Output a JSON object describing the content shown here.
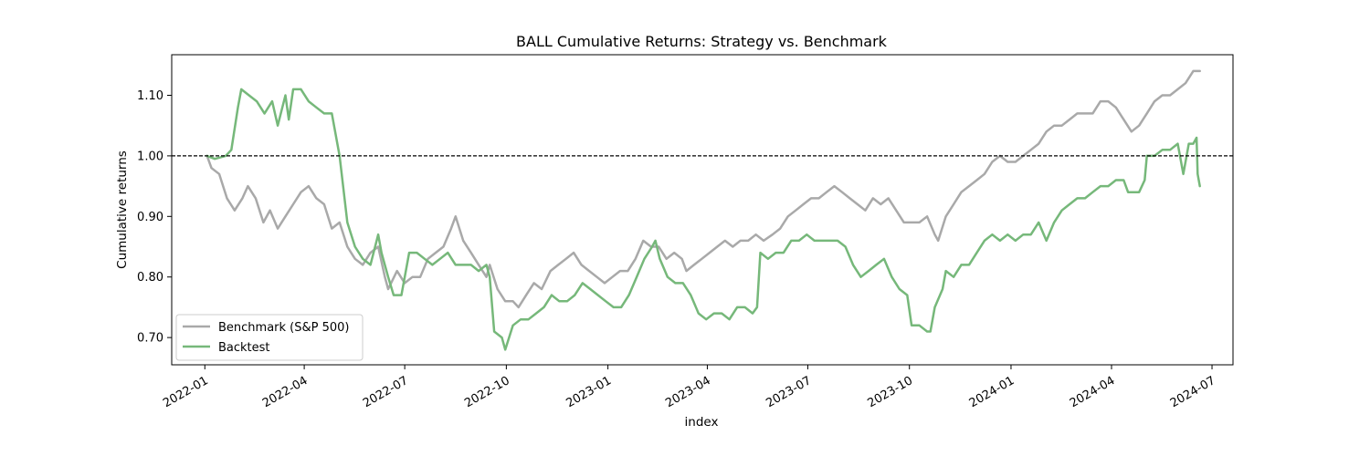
{
  "chart_data": {
    "type": "line",
    "title": "BALL Cumulative Returns: Strategy vs. Benchmark",
    "xlabel": "index",
    "ylabel": "Cumulative returns",
    "xlim": [
      "2021-12-02",
      "2024-07-20"
    ],
    "ylim": [
      0.655,
      1.167
    ],
    "x_ticks": [
      "2022-01",
      "2022-04",
      "2022-07",
      "2022-10",
      "2023-01",
      "2023-04",
      "2023-07",
      "2023-10",
      "2024-01",
      "2024-04",
      "2024-07"
    ],
    "y_ticks": [
      0.7,
      0.8,
      0.9,
      1.0,
      1.1
    ],
    "y_tick_labels": [
      "0.70",
      "0.80",
      "0.90",
      "1.00",
      "1.10"
    ],
    "reference_line": {
      "y": 1.0,
      "style": "dashed",
      "color": "#000000"
    },
    "legend_position": "lower-left",
    "grid": false,
    "series": [
      {
        "name": "Benchmark (S&P 500)",
        "color": "#a9a9a9",
        "points": [
          [
            "2022-01-03",
            1.0
          ],
          [
            "2022-01-07",
            0.98
          ],
          [
            "2022-01-14",
            0.97
          ],
          [
            "2022-01-21",
            0.93
          ],
          [
            "2022-01-28",
            0.91
          ],
          [
            "2022-02-04",
            0.93
          ],
          [
            "2022-02-09",
            0.95
          ],
          [
            "2022-02-16",
            0.93
          ],
          [
            "2022-02-23",
            0.89
          ],
          [
            "2022-03-01",
            0.91
          ],
          [
            "2022-03-08",
            0.88
          ],
          [
            "2022-03-15",
            0.9
          ],
          [
            "2022-03-22",
            0.92
          ],
          [
            "2022-03-29",
            0.94
          ],
          [
            "2022-04-05",
            0.95
          ],
          [
            "2022-04-12",
            0.93
          ],
          [
            "2022-04-19",
            0.92
          ],
          [
            "2022-04-26",
            0.88
          ],
          [
            "2022-05-03",
            0.89
          ],
          [
            "2022-05-10",
            0.85
          ],
          [
            "2022-05-17",
            0.83
          ],
          [
            "2022-05-24",
            0.82
          ],
          [
            "2022-05-31",
            0.84
          ],
          [
            "2022-06-07",
            0.85
          ],
          [
            "2022-06-13",
            0.8
          ],
          [
            "2022-06-16",
            0.78
          ],
          [
            "2022-06-24",
            0.81
          ],
          [
            "2022-07-01",
            0.79
          ],
          [
            "2022-07-08",
            0.8
          ],
          [
            "2022-07-15",
            0.8
          ],
          [
            "2022-07-22",
            0.83
          ],
          [
            "2022-07-29",
            0.84
          ],
          [
            "2022-08-05",
            0.85
          ],
          [
            "2022-08-12",
            0.88
          ],
          [
            "2022-08-16",
            0.9
          ],
          [
            "2022-08-23",
            0.86
          ],
          [
            "2022-08-30",
            0.84
          ],
          [
            "2022-09-06",
            0.82
          ],
          [
            "2022-09-13",
            0.8
          ],
          [
            "2022-09-16",
            0.82
          ],
          [
            "2022-09-23",
            0.78
          ],
          [
            "2022-09-30",
            0.76
          ],
          [
            "2022-10-07",
            0.76
          ],
          [
            "2022-10-12",
            0.75
          ],
          [
            "2022-10-19",
            0.77
          ],
          [
            "2022-10-26",
            0.79
          ],
          [
            "2022-11-02",
            0.78
          ],
          [
            "2022-11-10",
            0.81
          ],
          [
            "2022-11-17",
            0.82
          ],
          [
            "2022-11-24",
            0.83
          ],
          [
            "2022-12-01",
            0.84
          ],
          [
            "2022-12-08",
            0.82
          ],
          [
            "2022-12-15",
            0.81
          ],
          [
            "2022-12-22",
            0.8
          ],
          [
            "2022-12-29",
            0.79
          ],
          [
            "2023-01-05",
            0.8
          ],
          [
            "2023-01-12",
            0.81
          ],
          [
            "2023-01-19",
            0.81
          ],
          [
            "2023-01-26",
            0.83
          ],
          [
            "2023-02-02",
            0.86
          ],
          [
            "2023-02-09",
            0.85
          ],
          [
            "2023-02-16",
            0.85
          ],
          [
            "2023-02-23",
            0.83
          ],
          [
            "2023-03-02",
            0.84
          ],
          [
            "2023-03-09",
            0.83
          ],
          [
            "2023-03-13",
            0.81
          ],
          [
            "2023-03-20",
            0.82
          ],
          [
            "2023-03-27",
            0.83
          ],
          [
            "2023-04-03",
            0.84
          ],
          [
            "2023-04-10",
            0.85
          ],
          [
            "2023-04-17",
            0.86
          ],
          [
            "2023-04-24",
            0.85
          ],
          [
            "2023-05-01",
            0.86
          ],
          [
            "2023-05-08",
            0.86
          ],
          [
            "2023-05-15",
            0.87
          ],
          [
            "2023-05-22",
            0.86
          ],
          [
            "2023-05-30",
            0.87
          ],
          [
            "2023-06-06",
            0.88
          ],
          [
            "2023-06-13",
            0.9
          ],
          [
            "2023-06-20",
            0.91
          ],
          [
            "2023-06-27",
            0.92
          ],
          [
            "2023-07-04",
            0.93
          ],
          [
            "2023-07-11",
            0.93
          ],
          [
            "2023-07-18",
            0.94
          ],
          [
            "2023-07-25",
            0.95
          ],
          [
            "2023-08-01",
            0.94
          ],
          [
            "2023-08-08",
            0.93
          ],
          [
            "2023-08-15",
            0.92
          ],
          [
            "2023-08-22",
            0.91
          ],
          [
            "2023-08-29",
            0.93
          ],
          [
            "2023-09-05",
            0.92
          ],
          [
            "2023-09-12",
            0.93
          ],
          [
            "2023-09-19",
            0.91
          ],
          [
            "2023-09-26",
            0.89
          ],
          [
            "2023-10-03",
            0.89
          ],
          [
            "2023-10-10",
            0.89
          ],
          [
            "2023-10-17",
            0.9
          ],
          [
            "2023-10-24",
            0.87
          ],
          [
            "2023-10-27",
            0.86
          ],
          [
            "2023-11-03",
            0.9
          ],
          [
            "2023-11-10",
            0.92
          ],
          [
            "2023-11-17",
            0.94
          ],
          [
            "2023-11-24",
            0.95
          ],
          [
            "2023-12-01",
            0.96
          ],
          [
            "2023-12-08",
            0.97
          ],
          [
            "2023-12-15",
            0.99
          ],
          [
            "2023-12-22",
            1.0
          ],
          [
            "2023-12-29",
            0.99
          ],
          [
            "2024-01-05",
            0.99
          ],
          [
            "2024-01-12",
            1.0
          ],
          [
            "2024-01-19",
            1.01
          ],
          [
            "2024-01-26",
            1.02
          ],
          [
            "2024-02-02",
            1.04
          ],
          [
            "2024-02-09",
            1.05
          ],
          [
            "2024-02-16",
            1.05
          ],
          [
            "2024-02-23",
            1.06
          ],
          [
            "2024-03-01",
            1.07
          ],
          [
            "2024-03-08",
            1.07
          ],
          [
            "2024-03-15",
            1.07
          ],
          [
            "2024-03-22",
            1.09
          ],
          [
            "2024-03-29",
            1.09
          ],
          [
            "2024-04-05",
            1.08
          ],
          [
            "2024-04-12",
            1.06
          ],
          [
            "2024-04-19",
            1.04
          ],
          [
            "2024-04-26",
            1.05
          ],
          [
            "2024-05-03",
            1.07
          ],
          [
            "2024-05-10",
            1.09
          ],
          [
            "2024-05-17",
            1.1
          ],
          [
            "2024-05-24",
            1.1
          ],
          [
            "2024-05-31",
            1.11
          ],
          [
            "2024-06-07",
            1.12
          ],
          [
            "2024-06-14",
            1.14
          ],
          [
            "2024-06-20",
            1.14
          ]
        ]
      },
      {
        "name": "Backtest",
        "color": "#76b87a",
        "points": [
          [
            "2022-01-03",
            1.0
          ],
          [
            "2022-01-10",
            0.995
          ],
          [
            "2022-01-20",
            1.0
          ],
          [
            "2022-01-25",
            1.01
          ],
          [
            "2022-01-31",
            1.08
          ],
          [
            "2022-02-03",
            1.11
          ],
          [
            "2022-02-10",
            1.1
          ],
          [
            "2022-02-17",
            1.09
          ],
          [
            "2022-02-24",
            1.07
          ],
          [
            "2022-03-03",
            1.09
          ],
          [
            "2022-03-08",
            1.05
          ],
          [
            "2022-03-15",
            1.1
          ],
          [
            "2022-03-18",
            1.06
          ],
          [
            "2022-03-22",
            1.11
          ],
          [
            "2022-03-29",
            1.11
          ],
          [
            "2022-04-05",
            1.09
          ],
          [
            "2022-04-12",
            1.08
          ],
          [
            "2022-04-19",
            1.07
          ],
          [
            "2022-04-26",
            1.07
          ],
          [
            "2022-05-03",
            1.0
          ],
          [
            "2022-05-10",
            0.89
          ],
          [
            "2022-05-17",
            0.85
          ],
          [
            "2022-05-24",
            0.83
          ],
          [
            "2022-05-31",
            0.82
          ],
          [
            "2022-06-07",
            0.87
          ],
          [
            "2022-06-10",
            0.84
          ],
          [
            "2022-06-16",
            0.8
          ],
          [
            "2022-06-21",
            0.77
          ],
          [
            "2022-06-28",
            0.77
          ],
          [
            "2022-07-05",
            0.84
          ],
          [
            "2022-07-12",
            0.84
          ],
          [
            "2022-07-19",
            0.83
          ],
          [
            "2022-07-26",
            0.82
          ],
          [
            "2022-08-02",
            0.83
          ],
          [
            "2022-08-09",
            0.84
          ],
          [
            "2022-08-16",
            0.82
          ],
          [
            "2022-08-23",
            0.82
          ],
          [
            "2022-08-30",
            0.82
          ],
          [
            "2022-09-06",
            0.81
          ],
          [
            "2022-09-13",
            0.82
          ],
          [
            "2022-09-16",
            0.8
          ],
          [
            "2022-09-20",
            0.71
          ],
          [
            "2022-09-27",
            0.7
          ],
          [
            "2022-09-30",
            0.68
          ],
          [
            "2022-10-07",
            0.72
          ],
          [
            "2022-10-14",
            0.73
          ],
          [
            "2022-10-21",
            0.73
          ],
          [
            "2022-10-28",
            0.74
          ],
          [
            "2022-11-04",
            0.75
          ],
          [
            "2022-11-11",
            0.77
          ],
          [
            "2022-11-18",
            0.76
          ],
          [
            "2022-11-25",
            0.76
          ],
          [
            "2022-12-02",
            0.77
          ],
          [
            "2022-12-09",
            0.79
          ],
          [
            "2022-12-16",
            0.78
          ],
          [
            "2022-12-23",
            0.77
          ],
          [
            "2022-12-30",
            0.76
          ],
          [
            "2023-01-06",
            0.75
          ],
          [
            "2023-01-13",
            0.75
          ],
          [
            "2023-01-20",
            0.77
          ],
          [
            "2023-01-27",
            0.8
          ],
          [
            "2023-02-03",
            0.83
          ],
          [
            "2023-02-10",
            0.85
          ],
          [
            "2023-02-13",
            0.86
          ],
          [
            "2023-02-17",
            0.83
          ],
          [
            "2023-02-24",
            0.8
          ],
          [
            "2023-03-03",
            0.79
          ],
          [
            "2023-03-10",
            0.79
          ],
          [
            "2023-03-17",
            0.77
          ],
          [
            "2023-03-24",
            0.74
          ],
          [
            "2023-03-31",
            0.73
          ],
          [
            "2023-04-07",
            0.74
          ],
          [
            "2023-04-14",
            0.74
          ],
          [
            "2023-04-21",
            0.73
          ],
          [
            "2023-04-28",
            0.75
          ],
          [
            "2023-05-05",
            0.75
          ],
          [
            "2023-05-12",
            0.74
          ],
          [
            "2023-05-16",
            0.75
          ],
          [
            "2023-05-19",
            0.84
          ],
          [
            "2023-05-26",
            0.83
          ],
          [
            "2023-06-02",
            0.84
          ],
          [
            "2023-06-09",
            0.84
          ],
          [
            "2023-06-16",
            0.86
          ],
          [
            "2023-06-23",
            0.86
          ],
          [
            "2023-06-30",
            0.87
          ],
          [
            "2023-07-07",
            0.86
          ],
          [
            "2023-07-14",
            0.86
          ],
          [
            "2023-07-21",
            0.86
          ],
          [
            "2023-07-28",
            0.86
          ],
          [
            "2023-08-04",
            0.85
          ],
          [
            "2023-08-11",
            0.82
          ],
          [
            "2023-08-18",
            0.8
          ],
          [
            "2023-08-25",
            0.81
          ],
          [
            "2023-09-01",
            0.82
          ],
          [
            "2023-09-08",
            0.83
          ],
          [
            "2023-09-15",
            0.8
          ],
          [
            "2023-09-22",
            0.78
          ],
          [
            "2023-09-29",
            0.77
          ],
          [
            "2023-10-03",
            0.72
          ],
          [
            "2023-10-10",
            0.72
          ],
          [
            "2023-10-17",
            0.71
          ],
          [
            "2023-10-20",
            0.71
          ],
          [
            "2023-10-24",
            0.75
          ],
          [
            "2023-10-31",
            0.78
          ],
          [
            "2023-11-03",
            0.81
          ],
          [
            "2023-11-10",
            0.8
          ],
          [
            "2023-11-17",
            0.82
          ],
          [
            "2023-11-24",
            0.82
          ],
          [
            "2023-12-01",
            0.84
          ],
          [
            "2023-12-08",
            0.86
          ],
          [
            "2023-12-15",
            0.87
          ],
          [
            "2023-12-22",
            0.86
          ],
          [
            "2023-12-29",
            0.87
          ],
          [
            "2024-01-05",
            0.86
          ],
          [
            "2024-01-12",
            0.87
          ],
          [
            "2024-01-19",
            0.87
          ],
          [
            "2024-01-26",
            0.89
          ],
          [
            "2024-02-02",
            0.86
          ],
          [
            "2024-02-09",
            0.89
          ],
          [
            "2024-02-16",
            0.91
          ],
          [
            "2024-02-23",
            0.92
          ],
          [
            "2024-03-01",
            0.93
          ],
          [
            "2024-03-08",
            0.93
          ],
          [
            "2024-03-15",
            0.94
          ],
          [
            "2024-03-22",
            0.95
          ],
          [
            "2024-03-29",
            0.95
          ],
          [
            "2024-04-05",
            0.96
          ],
          [
            "2024-04-12",
            0.96
          ],
          [
            "2024-04-16",
            0.94
          ],
          [
            "2024-04-26",
            0.94
          ],
          [
            "2024-05-01",
            0.96
          ],
          [
            "2024-05-03",
            1.0
          ],
          [
            "2024-05-10",
            1.0
          ],
          [
            "2024-05-17",
            1.01
          ],
          [
            "2024-05-24",
            1.01
          ],
          [
            "2024-05-31",
            1.02
          ],
          [
            "2024-06-05",
            0.97
          ],
          [
            "2024-06-10",
            1.02
          ],
          [
            "2024-06-14",
            1.02
          ],
          [
            "2024-06-17",
            1.03
          ],
          [
            "2024-06-18",
            0.97
          ],
          [
            "2024-06-20",
            0.95
          ]
        ]
      }
    ]
  }
}
